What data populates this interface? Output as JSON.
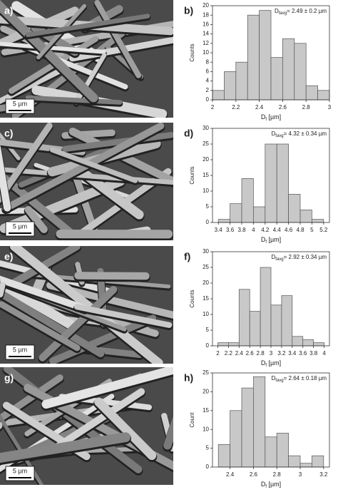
{
  "images": [
    {
      "label": "a)",
      "scale_bar": "5 µm"
    },
    {
      "label": "c)",
      "scale_bar": "5 µm"
    },
    {
      "label": "e)",
      "scale_bar": "5 µm"
    },
    {
      "label": "g)",
      "scale_bar": "5 µm"
    }
  ],
  "chart_data": [
    {
      "type": "histogram",
      "panel_label": "b)",
      "annotation": [
        "D",
        "favg",
        "= 2.49 ± 0.2 µm"
      ],
      "xlabel": [
        "D",
        "f",
        " [µm]"
      ],
      "ylabel": "Counts",
      "color": "#c8c8c8",
      "bins": [
        2.0,
        2.1,
        2.2,
        2.3,
        2.4,
        2.5,
        2.6,
        2.7,
        2.8,
        2.9,
        3.0
      ],
      "values": [
        2,
        6,
        8,
        18,
        19,
        9,
        13,
        12,
        3,
        2
      ],
      "xlim": [
        2.0,
        3.0
      ],
      "xticks": [
        2,
        2.2,
        2.4,
        2.6,
        2.8,
        3
      ],
      "ylim": [
        0,
        20
      ],
      "yticks": [
        0,
        2,
        4,
        6,
        8,
        10,
        12,
        14,
        16,
        18,
        20
      ]
    },
    {
      "type": "histogram",
      "panel_label": "d)",
      "annotation": [
        "D",
        "favg",
        "= 4.32 ± 0.34 µm"
      ],
      "xlabel": [
        "D",
        "f",
        " [µm]"
      ],
      "ylabel": "Counts",
      "color": "#c8c8c8",
      "bins": [
        3.4,
        3.6,
        3.8,
        4.0,
        4.2,
        4.4,
        4.6,
        4.8,
        5.0,
        5.2
      ],
      "values": [
        1,
        6,
        14,
        5,
        25,
        25,
        9,
        4,
        1
      ],
      "xlim": [
        3.3,
        5.3
      ],
      "xticks": [
        3.4,
        3.6,
        3.8,
        4,
        4.2,
        4.4,
        4.6,
        4.8,
        5,
        5.2
      ],
      "ylim": [
        0,
        30
      ],
      "yticks": [
        0,
        5,
        10,
        15,
        20,
        25,
        30
      ]
    },
    {
      "type": "histogram",
      "panel_label": "f)",
      "annotation": [
        "D",
        "favg",
        "= 2.92 ± 0.34 µm"
      ],
      "xlabel": [
        "D",
        "f",
        " [µm]"
      ],
      "ylabel": "Counts",
      "color": "#c8c8c8",
      "bins": [
        2.0,
        2.2,
        2.4,
        2.6,
        2.8,
        3.0,
        3.2,
        3.4,
        3.6,
        3.8,
        4.0
      ],
      "values": [
        1,
        1,
        18,
        11,
        25,
        13,
        16,
        3,
        2,
        1
      ],
      "xlim": [
        1.9,
        4.1
      ],
      "xticks": [
        2,
        2.2,
        2.4,
        2.6,
        2.8,
        3,
        3.2,
        3.4,
        3.6,
        3.8,
        4
      ],
      "ylim": [
        0,
        30
      ],
      "yticks": [
        0,
        5,
        10,
        15,
        20,
        25,
        30
      ]
    },
    {
      "type": "histogram",
      "panel_label": "h)",
      "annotation": [
        "D",
        "favg",
        "= 2.64 ± 0.18 µm"
      ],
      "xlabel": [
        "D",
        "f",
        " [µm]"
      ],
      "ylabel": "Count",
      "color": "#c8c8c8",
      "bins": [
        2.3,
        2.4,
        2.5,
        2.6,
        2.7,
        2.8,
        2.9,
        3.0,
        3.1,
        3.2
      ],
      "values": [
        6,
        15,
        21,
        24,
        8,
        9,
        3,
        1,
        3
      ],
      "xlim": [
        2.25,
        3.25
      ],
      "xticks": [
        2.4,
        2.6,
        2.8,
        3,
        3.2
      ],
      "ylim": [
        0,
        25
      ],
      "yticks": [
        0,
        5,
        10,
        15,
        20,
        25
      ]
    }
  ]
}
